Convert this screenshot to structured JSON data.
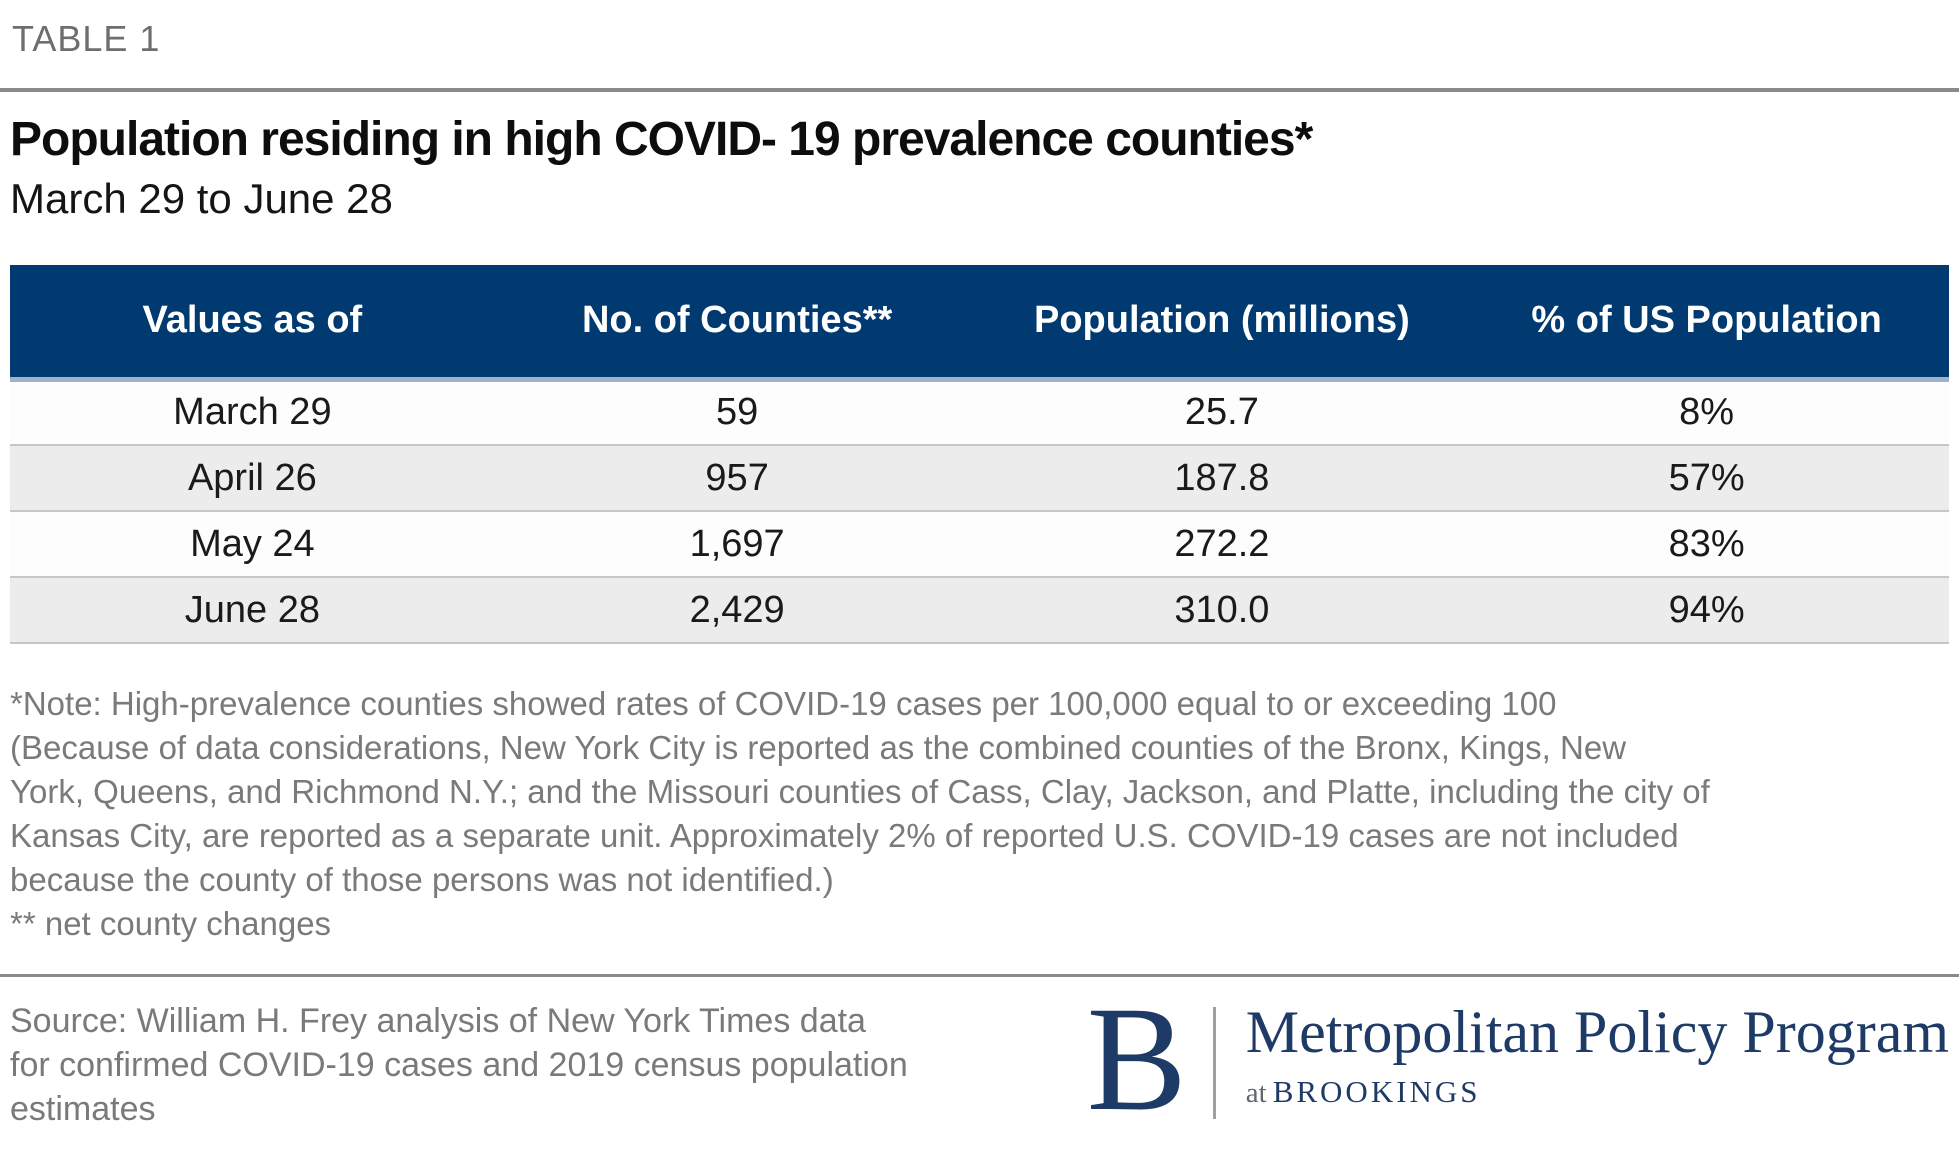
{
  "page": {
    "kicker": "TABLE 1"
  },
  "chart_data": {
    "type": "table",
    "title": "Population residing in high COVID- 19 prevalence counties*",
    "subtitle": "March 29 to June 28",
    "columns": [
      "Values as of",
      "No. of Counties**",
      "Population (millions)",
      "% of US Population"
    ],
    "rows": [
      [
        "March 29",
        "59",
        "25.7",
        "8%"
      ],
      [
        "April 26",
        "957",
        "187.8",
        "57%"
      ],
      [
        "May 24",
        "1,697",
        "272.2",
        "83%"
      ],
      [
        "June 28",
        "2,429",
        "310.0",
        "94%"
      ]
    ],
    "series_numeric": {
      "dates": [
        "March 29",
        "April 26",
        "May 24",
        "June 28"
      ],
      "no_of_counties": [
        59,
        957,
        1697,
        2429
      ],
      "population_millions": [
        25.7,
        187.8,
        272.2,
        310.0
      ],
      "pct_of_us_population": [
        8,
        57,
        83,
        94
      ]
    },
    "layout": {
      "header_bg": "#003A70",
      "alt_row_bg": "#ECECEC",
      "header_text": "#FFFFFF",
      "alignment": "center"
    }
  },
  "notes": {
    "lines": [
      "*Note: High-prevalence counties showed rates of COVID-19 cases per 100,000 equal to or exceeding 100",
      "(Because of data considerations, New York City is reported as the combined counties of the Bronx, Kings, New",
      "York, Queens, and Richmond N.Y.; and the Missouri counties of Cass, Clay, Jackson, and Platte, including the city of",
      "Kansas City, are reported as a separate unit. Approximately 2% of reported U.S. COVID-19 cases are not included",
      "because the county of those persons was not identified.)"
    ],
    "footnote": "** net county changes"
  },
  "footer": {
    "source_lines": [
      "Source: William H. Frey analysis of New York Times data",
      "for confirmed COVID-19 cases and 2019 census population",
      "estimates"
    ],
    "logo": {
      "mark": "B",
      "program": "Metropolitan Policy Program",
      "at": "at",
      "org": "BROOKINGS"
    }
  },
  "colors": {
    "header_bg": "#003A70",
    "alt_row_bg": "#ECECEC",
    "rule_gray": "#8A8A8A",
    "note_gray": "#7A7A7A",
    "logo_navy": "#1E3A66"
  }
}
